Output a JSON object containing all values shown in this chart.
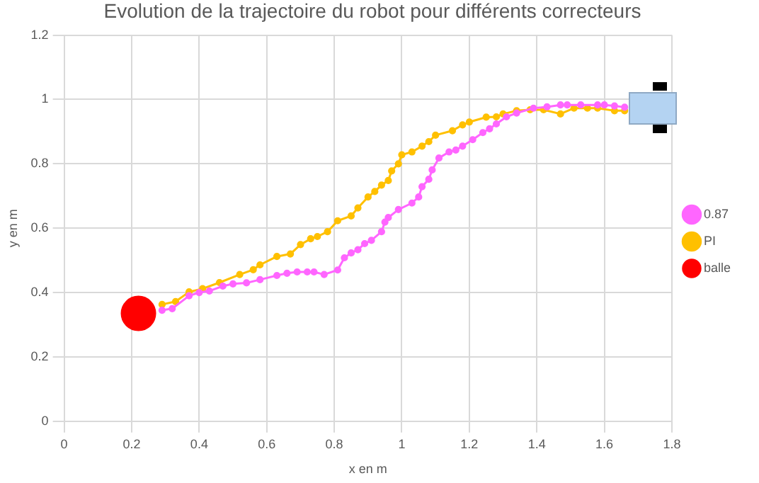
{
  "chart_data": {
    "type": "line",
    "title": "Evolution de la trajectoire du robot pour différents correcteurs",
    "xlabel": "x en m",
    "ylabel": "y en m",
    "xlim": [
      0,
      1.8
    ],
    "xticks": [
      0,
      0.2,
      0.4,
      0.6,
      0.8,
      1,
      1.2,
      1.4,
      1.6,
      1.8
    ],
    "ylim": [
      0,
      1.2
    ],
    "yticks": [
      0,
      0.2,
      0.4,
      0.6,
      0.8,
      1,
      1.2
    ],
    "grid": true,
    "legend": "right",
    "marker": "circle",
    "line_style": "solid",
    "series": [
      {
        "name": "0.87",
        "color": "#ff66ff",
        "x": [
          0.29,
          0.32,
          0.37,
          0.4,
          0.43,
          0.47,
          0.5,
          0.54,
          0.58,
          0.63,
          0.66,
          0.69,
          0.72,
          0.74,
          0.77,
          0.81,
          0.83,
          0.85,
          0.87,
          0.89,
          0.91,
          0.94,
          0.95,
          0.96,
          0.99,
          1.03,
          1.05,
          1.06,
          1.08,
          1.09,
          1.11,
          1.14,
          1.16,
          1.18,
          1.21,
          1.24,
          1.26,
          1.28,
          1.31,
          1.34,
          1.39,
          1.43,
          1.47,
          1.49,
          1.53,
          1.58,
          1.6,
          1.63,
          1.66
        ],
        "values": [
          0.345,
          0.35,
          0.39,
          0.4,
          0.405,
          0.42,
          0.427,
          0.43,
          0.44,
          0.453,
          0.46,
          0.464,
          0.464,
          0.464,
          0.456,
          0.47,
          0.508,
          0.523,
          0.533,
          0.552,
          0.562,
          0.589,
          0.619,
          0.633,
          0.658,
          0.678,
          0.697,
          0.729,
          0.752,
          0.781,
          0.818,
          0.837,
          0.843,
          0.855,
          0.875,
          0.897,
          0.909,
          0.924,
          0.946,
          0.958,
          0.973,
          0.977,
          0.983,
          0.983,
          0.983,
          0.983,
          0.983,
          0.98,
          0.976
        ]
      },
      {
        "name": "PI",
        "color": "#ffc000",
        "x": [
          0.29,
          0.33,
          0.37,
          0.41,
          0.46,
          0.52,
          0.56,
          0.58,
          0.63,
          0.67,
          0.7,
          0.73,
          0.75,
          0.78,
          0.81,
          0.85,
          0.87,
          0.9,
          0.92,
          0.94,
          0.96,
          0.97,
          0.99,
          1.0,
          1.03,
          1.06,
          1.08,
          1.1,
          1.15,
          1.18,
          1.2,
          1.25,
          1.28,
          1.3,
          1.34,
          1.38,
          1.42,
          1.47,
          1.51,
          1.55,
          1.58,
          1.63,
          1.66
        ],
        "values": [
          0.363,
          0.372,
          0.402,
          0.412,
          0.431,
          0.456,
          0.471,
          0.486,
          0.512,
          0.52,
          0.549,
          0.567,
          0.574,
          0.589,
          0.623,
          0.638,
          0.663,
          0.697,
          0.714,
          0.734,
          0.748,
          0.778,
          0.8,
          0.828,
          0.837,
          0.855,
          0.869,
          0.889,
          0.903,
          0.921,
          0.93,
          0.945,
          0.946,
          0.955,
          0.965,
          0.968,
          0.968,
          0.955,
          0.973,
          0.973,
          0.973,
          0.965,
          0.965
        ]
      },
      {
        "name": "balle",
        "type": "scatter",
        "color": "#ff0000",
        "x": [
          0.22
        ],
        "values": [
          0.335
        ]
      }
    ]
  }
}
